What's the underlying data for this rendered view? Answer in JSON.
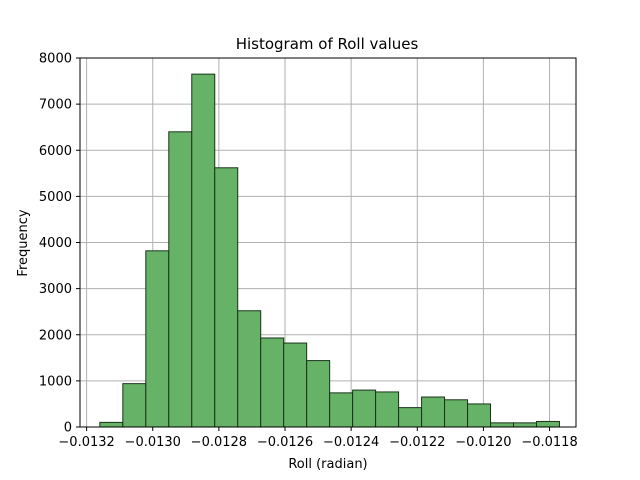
{
  "chart_data": {
    "type": "histogram",
    "title": "Histogram of Roll values",
    "xlabel": "Roll (radian)",
    "ylabel": "Frequency",
    "xlim": [
      -0.01322,
      -0.01172
    ],
    "ylim": [
      0,
      8000
    ],
    "grid": true,
    "bar_color": "#66b266",
    "edge_color": "#1a331a",
    "x_ticks": [
      -0.0132,
      -0.013,
      -0.0128,
      -0.0126,
      -0.0124,
      -0.0122,
      -0.012,
      -0.0118
    ],
    "x_tick_labels": [
      "−0.0132",
      "−0.0130",
      "−0.0128",
      "−0.0126",
      "−0.0124",
      "−0.0122",
      "−0.0120",
      "−0.0118"
    ],
    "y_ticks": [
      0,
      1000,
      2000,
      3000,
      4000,
      5000,
      6000,
      7000,
      8000
    ],
    "y_tick_labels": [
      "0",
      "1000",
      "2000",
      "3000",
      "4000",
      "5000",
      "6000",
      "7000",
      "8000"
    ],
    "bin_start": -0.01316,
    "bin_end": -0.01177,
    "counts": [
      100,
      940,
      3820,
      6400,
      7650,
      5620,
      2520,
      1930,
      1820,
      1440,
      740,
      800,
      760,
      420,
      650,
      590,
      500,
      90,
      90,
      120
    ]
  }
}
